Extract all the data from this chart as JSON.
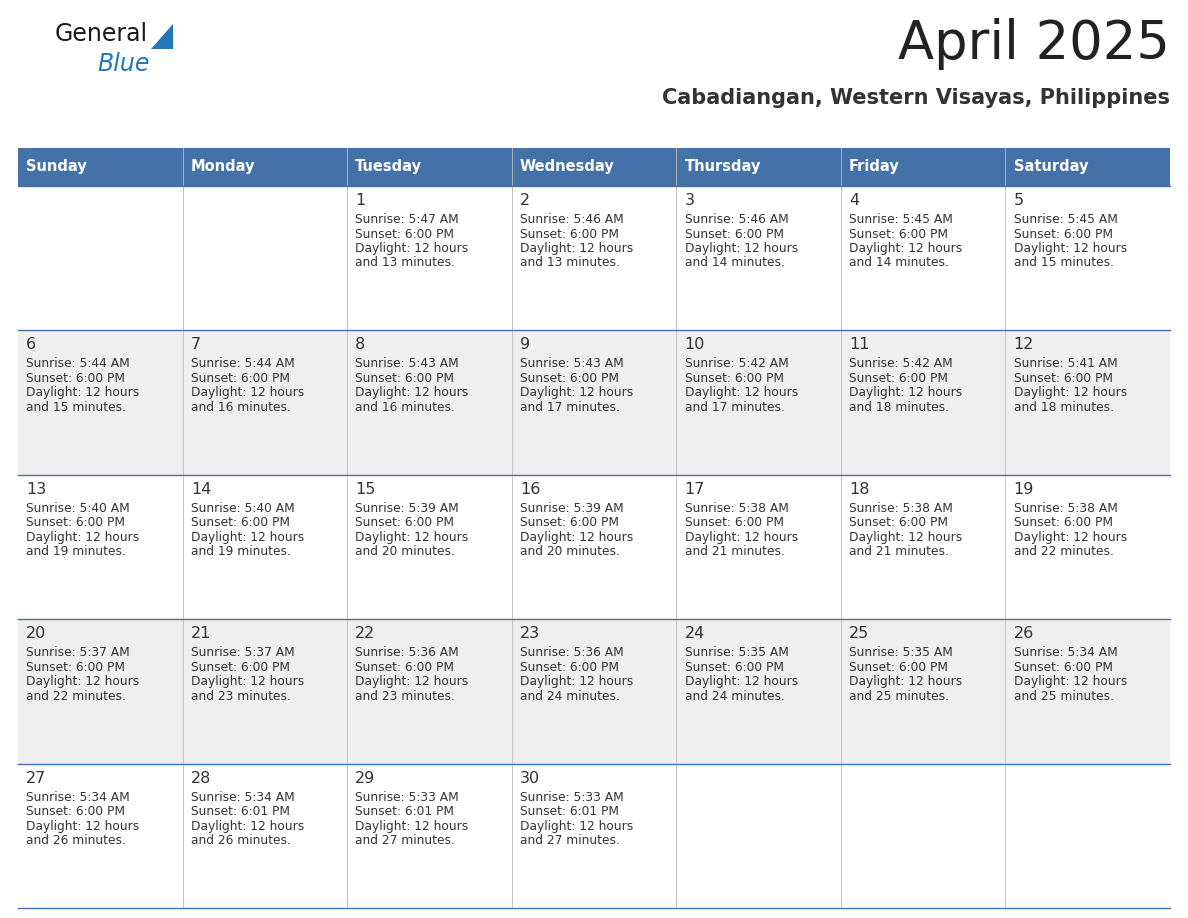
{
  "title": "April 2025",
  "subtitle": "Cabadiangan, Western Visayas, Philippines",
  "header_bg_color": "#4472a8",
  "header_text_color": "#ffffff",
  "cell_bg_even": "#efefef",
  "cell_bg_odd": "#ffffff",
  "border_color": "#4472a8",
  "title_color": "#222222",
  "subtitle_color": "#333333",
  "day_names": [
    "Sunday",
    "Monday",
    "Tuesday",
    "Wednesday",
    "Thursday",
    "Friday",
    "Saturday"
  ],
  "weeks": [
    [
      {
        "day": "",
        "lines": []
      },
      {
        "day": "",
        "lines": []
      },
      {
        "day": "1",
        "lines": [
          "Sunrise: 5:47 AM",
          "Sunset: 6:00 PM",
          "Daylight: 12 hours",
          "and 13 minutes."
        ]
      },
      {
        "day": "2",
        "lines": [
          "Sunrise: 5:46 AM",
          "Sunset: 6:00 PM",
          "Daylight: 12 hours",
          "and 13 minutes."
        ]
      },
      {
        "day": "3",
        "lines": [
          "Sunrise: 5:46 AM",
          "Sunset: 6:00 PM",
          "Daylight: 12 hours",
          "and 14 minutes."
        ]
      },
      {
        "day": "4",
        "lines": [
          "Sunrise: 5:45 AM",
          "Sunset: 6:00 PM",
          "Daylight: 12 hours",
          "and 14 minutes."
        ]
      },
      {
        "day": "5",
        "lines": [
          "Sunrise: 5:45 AM",
          "Sunset: 6:00 PM",
          "Daylight: 12 hours",
          "and 15 minutes."
        ]
      }
    ],
    [
      {
        "day": "6",
        "lines": [
          "Sunrise: 5:44 AM",
          "Sunset: 6:00 PM",
          "Daylight: 12 hours",
          "and 15 minutes."
        ]
      },
      {
        "day": "7",
        "lines": [
          "Sunrise: 5:44 AM",
          "Sunset: 6:00 PM",
          "Daylight: 12 hours",
          "and 16 minutes."
        ]
      },
      {
        "day": "8",
        "lines": [
          "Sunrise: 5:43 AM",
          "Sunset: 6:00 PM",
          "Daylight: 12 hours",
          "and 16 minutes."
        ]
      },
      {
        "day": "9",
        "lines": [
          "Sunrise: 5:43 AM",
          "Sunset: 6:00 PM",
          "Daylight: 12 hours",
          "and 17 minutes."
        ]
      },
      {
        "day": "10",
        "lines": [
          "Sunrise: 5:42 AM",
          "Sunset: 6:00 PM",
          "Daylight: 12 hours",
          "and 17 minutes."
        ]
      },
      {
        "day": "11",
        "lines": [
          "Sunrise: 5:42 AM",
          "Sunset: 6:00 PM",
          "Daylight: 12 hours",
          "and 18 minutes."
        ]
      },
      {
        "day": "12",
        "lines": [
          "Sunrise: 5:41 AM",
          "Sunset: 6:00 PM",
          "Daylight: 12 hours",
          "and 18 minutes."
        ]
      }
    ],
    [
      {
        "day": "13",
        "lines": [
          "Sunrise: 5:40 AM",
          "Sunset: 6:00 PM",
          "Daylight: 12 hours",
          "and 19 minutes."
        ]
      },
      {
        "day": "14",
        "lines": [
          "Sunrise: 5:40 AM",
          "Sunset: 6:00 PM",
          "Daylight: 12 hours",
          "and 19 minutes."
        ]
      },
      {
        "day": "15",
        "lines": [
          "Sunrise: 5:39 AM",
          "Sunset: 6:00 PM",
          "Daylight: 12 hours",
          "and 20 minutes."
        ]
      },
      {
        "day": "16",
        "lines": [
          "Sunrise: 5:39 AM",
          "Sunset: 6:00 PM",
          "Daylight: 12 hours",
          "and 20 minutes."
        ]
      },
      {
        "day": "17",
        "lines": [
          "Sunrise: 5:38 AM",
          "Sunset: 6:00 PM",
          "Daylight: 12 hours",
          "and 21 minutes."
        ]
      },
      {
        "day": "18",
        "lines": [
          "Sunrise: 5:38 AM",
          "Sunset: 6:00 PM",
          "Daylight: 12 hours",
          "and 21 minutes."
        ]
      },
      {
        "day": "19",
        "lines": [
          "Sunrise: 5:38 AM",
          "Sunset: 6:00 PM",
          "Daylight: 12 hours",
          "and 22 minutes."
        ]
      }
    ],
    [
      {
        "day": "20",
        "lines": [
          "Sunrise: 5:37 AM",
          "Sunset: 6:00 PM",
          "Daylight: 12 hours",
          "and 22 minutes."
        ]
      },
      {
        "day": "21",
        "lines": [
          "Sunrise: 5:37 AM",
          "Sunset: 6:00 PM",
          "Daylight: 12 hours",
          "and 23 minutes."
        ]
      },
      {
        "day": "22",
        "lines": [
          "Sunrise: 5:36 AM",
          "Sunset: 6:00 PM",
          "Daylight: 12 hours",
          "and 23 minutes."
        ]
      },
      {
        "day": "23",
        "lines": [
          "Sunrise: 5:36 AM",
          "Sunset: 6:00 PM",
          "Daylight: 12 hours",
          "and 24 minutes."
        ]
      },
      {
        "day": "24",
        "lines": [
          "Sunrise: 5:35 AM",
          "Sunset: 6:00 PM",
          "Daylight: 12 hours",
          "and 24 minutes."
        ]
      },
      {
        "day": "25",
        "lines": [
          "Sunrise: 5:35 AM",
          "Sunset: 6:00 PM",
          "Daylight: 12 hours",
          "and 25 minutes."
        ]
      },
      {
        "day": "26",
        "lines": [
          "Sunrise: 5:34 AM",
          "Sunset: 6:00 PM",
          "Daylight: 12 hours",
          "and 25 minutes."
        ]
      }
    ],
    [
      {
        "day": "27",
        "lines": [
          "Sunrise: 5:34 AM",
          "Sunset: 6:00 PM",
          "Daylight: 12 hours",
          "and 26 minutes."
        ]
      },
      {
        "day": "28",
        "lines": [
          "Sunrise: 5:34 AM",
          "Sunset: 6:01 PM",
          "Daylight: 12 hours",
          "and 26 minutes."
        ]
      },
      {
        "day": "29",
        "lines": [
          "Sunrise: 5:33 AM",
          "Sunset: 6:01 PM",
          "Daylight: 12 hours",
          "and 27 minutes."
        ]
      },
      {
        "day": "30",
        "lines": [
          "Sunrise: 5:33 AM",
          "Sunset: 6:01 PM",
          "Daylight: 12 hours",
          "and 27 minutes."
        ]
      },
      {
        "day": "",
        "lines": []
      },
      {
        "day": "",
        "lines": []
      },
      {
        "day": "",
        "lines": []
      }
    ]
  ],
  "logo_text_general": "General",
  "logo_text_blue": "Blue",
  "logo_color_general": "#1a1a1a",
  "logo_color_blue": "#2277bb",
  "logo_triangle_color": "#2277bb"
}
